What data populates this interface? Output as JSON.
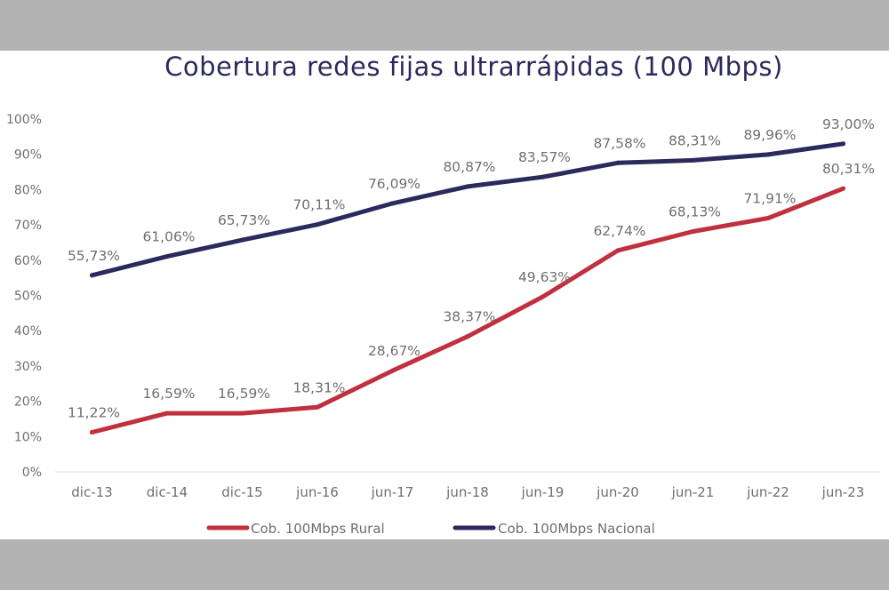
{
  "chart_data": {
    "type": "line",
    "title": "Cobertura redes fijas ultrarrápidas (100 Mbps)",
    "xlabel": "",
    "ylabel": "",
    "categories": [
      "dic-13",
      "dic-14",
      "dic-15",
      "jun-16",
      "jun-17",
      "jun-18",
      "jun-19",
      "jun-20",
      "jun-21",
      "jun-22",
      "jun-23"
    ],
    "ylim": [
      0,
      100
    ],
    "yticks": [
      0,
      10,
      20,
      30,
      40,
      50,
      60,
      70,
      80,
      90,
      100
    ],
    "ytick_labels": [
      "0%",
      "10%",
      "20%",
      "30%",
      "40%",
      "50%",
      "60%",
      "70%",
      "80%",
      "90%",
      "100%"
    ],
    "grid": false,
    "legend_position": "bottom",
    "series": [
      {
        "name": "Cob. 100Mbps Rural",
        "color": "#c0303f",
        "values": [
          11.22,
          16.59,
          16.59,
          18.31,
          28.67,
          38.37,
          49.63,
          62.74,
          68.13,
          71.91,
          80.31
        ],
        "labels": [
          "11,22%",
          "16,59%",
          "16,59%",
          "18,31%",
          "28,67%",
          "38,37%",
          "49,63%",
          "62,74%",
          "68,13%",
          "71,91%",
          "80,31%"
        ]
      },
      {
        "name": "Cob. 100Mbps Nacional",
        "color": "#2b2a5c",
        "values": [
          55.73,
          61.06,
          65.73,
          70.11,
          76.09,
          80.87,
          83.57,
          87.58,
          88.31,
          89.96,
          93.0
        ],
        "labels": [
          "55,73%",
          "61,06%",
          "65,73%",
          "70,11%",
          "76,09%",
          "80,87%",
          "83,57%",
          "87,58%",
          "88,31%",
          "89,96%",
          "93,00%"
        ]
      }
    ]
  }
}
